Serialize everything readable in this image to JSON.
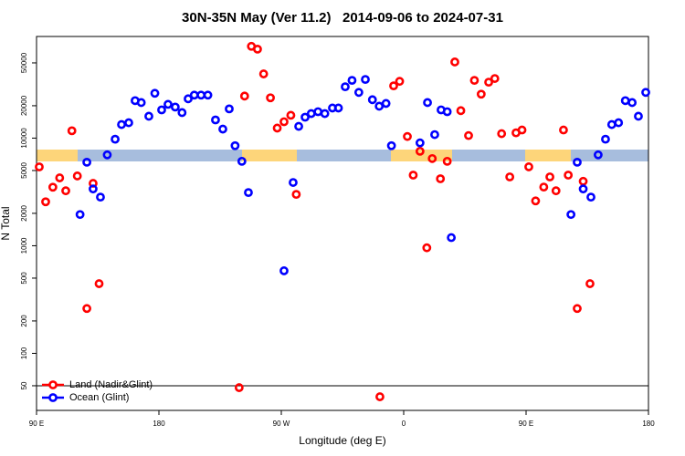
{
  "chart_data": {
    "type": "scatter",
    "title": "30N-35N May (Ver 11.2)   2014-09-06 to 2024-07-31",
    "x_label": "Longitude (deg E)",
    "y_label": "N Total",
    "xlim": [
      90,
      540
    ],
    "ylim": [
      29.5,
      88000
    ],
    "ylog": true,
    "xticks": [
      {
        "value": 90,
        "label": "90 E"
      },
      180,
      {
        "value": 270,
        "label": "90 W"
      },
      {
        "value": 360,
        "label": "0"
      },
      {
        "value": 450,
        "label": "90 E"
      },
      {
        "value": 540,
        "label": "180"
      }
    ],
    "yticks": [
      50,
      100,
      200,
      500,
      1000,
      2000,
      5000,
      10000,
      20000,
      50000
    ],
    "hline": 50,
    "legend": "bottom-left",
    "series": [
      {
        "name": "Land (Nadir&Glint)",
        "color": "#ff0000",
        "x": [
          92,
          96.7,
          102,
          107,
          111.5,
          116,
          120,
          127,
          131.6,
          136,
          239,
          243,
          248,
          252.5,
          257,
          262,
          267,
          272,
          277,
          281,
          342.5,
          352.6,
          357,
          362.7,
          367,
          372,
          377,
          381,
          387,
          392,
          397.6,
          402,
          407.7,
          412,
          417,
          422.5,
          427,
          432,
          438,
          442.6,
          447,
          452,
          457,
          463,
          467.5,
          472,
          477.5,
          481,
          487.6,
          492,
          497
        ],
        "values": [
          5400,
          2560,
          3500,
          4270,
          3240,
          11700,
          4450,
          261,
          3800,
          444,
          48,
          24600,
          71300,
          67100,
          39500,
          23700,
          12400,
          14200,
          16300,
          3000,
          39.5,
          30600,
          33700,
          10350,
          4530,
          7550,
          957,
          6460,
          4190,
          6090,
          51000,
          18000,
          10560,
          34400,
          25600,
          33100,
          35800,
          11000,
          4360,
          11200,
          11900,
          5410,
          2610,
          3510,
          4360,
          3240,
          11900,
          4530,
          261,
          3970,
          444
        ]
      },
      {
        "name": "Ocean (Glint)",
        "color": "#0000ff",
        "x": [
          122,
          127,
          131.6,
          137,
          142,
          147.8,
          152.5,
          157.8,
          162.5,
          167,
          172.6,
          177,
          182,
          186.7,
          192,
          197,
          201.5,
          206,
          211,
          216,
          221.6,
          227,
          231.7,
          236,
          241,
          245.8,
          272,
          278.7,
          282.8,
          287.5,
          292,
          297,
          302,
          307.6,
          312,
          317,
          322,
          327,
          331.8,
          337,
          342,
          347,
          351,
          372,
          377.5,
          382.8,
          387.5,
          392,
          395,
          483,
          487.6,
          492,
          497.7,
          503,
          508.4,
          513,
          518,
          523,
          528,
          532.6,
          538
        ],
        "values": [
          1950,
          5970,
          3370,
          2830,
          6990,
          9770,
          13370,
          13900,
          22300,
          21400,
          15970,
          26100,
          18300,
          20600,
          19450,
          17270,
          23200,
          25100,
          25100,
          25100,
          14760,
          12130,
          18700,
          8500,
          6090,
          3120,
          585,
          3870,
          12860,
          15650,
          16900,
          17600,
          16900,
          19050,
          19050,
          30000,
          34400,
          26600,
          35100,
          22750,
          19800,
          21000,
          8500,
          9030,
          21400,
          10780,
          18300,
          17600,
          1190,
          1950,
          5970,
          3370,
          2830,
          6990,
          9770,
          13370,
          13900,
          22300,
          21400,
          15970,
          26600
        ]
      }
    ]
  }
}
